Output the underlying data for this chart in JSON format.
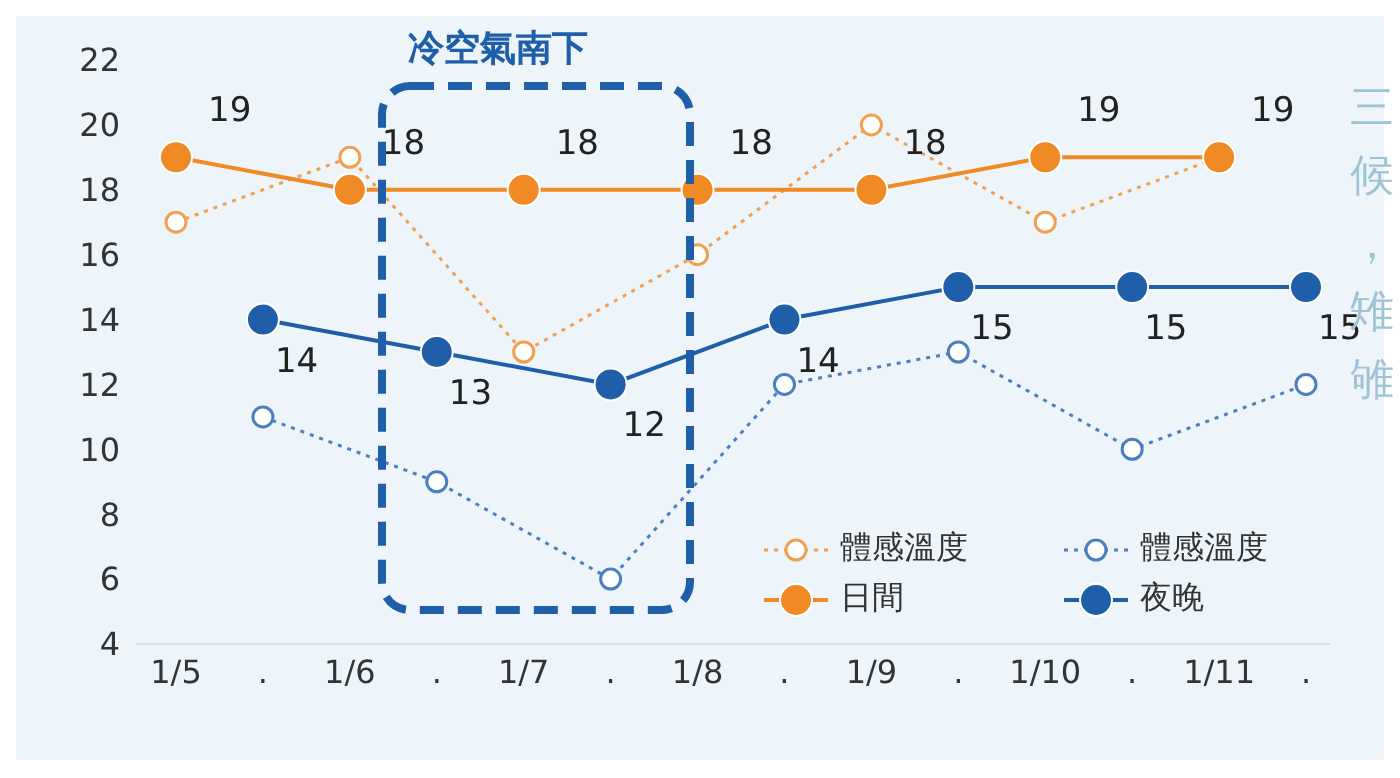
{
  "chart_data": {
    "type": "line",
    "categories": [
      "1/5",
      ".",
      "1/6",
      ".",
      "1/7",
      ".",
      "1/8",
      ".",
      "1/9",
      ".",
      "1/10",
      ".",
      "1/11",
      "."
    ],
    "series": [
      {
        "name": "體感溫度",
        "color": "#f0a050",
        "line_style": "dotted",
        "values": [
          17,
          null,
          19,
          null,
          13,
          null,
          16,
          null,
          20,
          null,
          17,
          null,
          19,
          null
        ]
      },
      {
        "name": "體感溫度",
        "color": "#4a7fc0",
        "line_style": "dotted",
        "values": [
          null,
          11,
          null,
          9,
          null,
          6,
          null,
          12,
          null,
          13,
          null,
          10,
          null,
          12
        ]
      },
      {
        "name": "日間",
        "color": "#f08a24",
        "line_style": "solid",
        "values": [
          19,
          null,
          18,
          null,
          18,
          null,
          18,
          null,
          18,
          null,
          19,
          null,
          19,
          null
        ],
        "value_labels": [
          "19",
          null,
          "18",
          null,
          "18",
          null,
          "18",
          null,
          "18",
          null,
          "19",
          null,
          "19",
          null
        ]
      },
      {
        "name": "夜晚",
        "color": "#1f5ea8",
        "line_style": "solid",
        "values": [
          null,
          14,
          null,
          13,
          null,
          12,
          null,
          14,
          null,
          15,
          null,
          15,
          null,
          15
        ],
        "value_labels": [
          null,
          "14",
          null,
          "13",
          null,
          "12",
          null,
          "14",
          null,
          "15",
          null,
          "15",
          null,
          "15"
        ]
      }
    ],
    "ylim": [
      4,
      22
    ],
    "yticks": [
      4,
      6,
      8,
      10,
      12,
      14,
      16,
      18,
      20,
      22
    ],
    "marker": "circle",
    "legend": "bottom right",
    "annotations": [
      "冷空氣南下",
      "三候，雉雊"
    ]
  }
}
